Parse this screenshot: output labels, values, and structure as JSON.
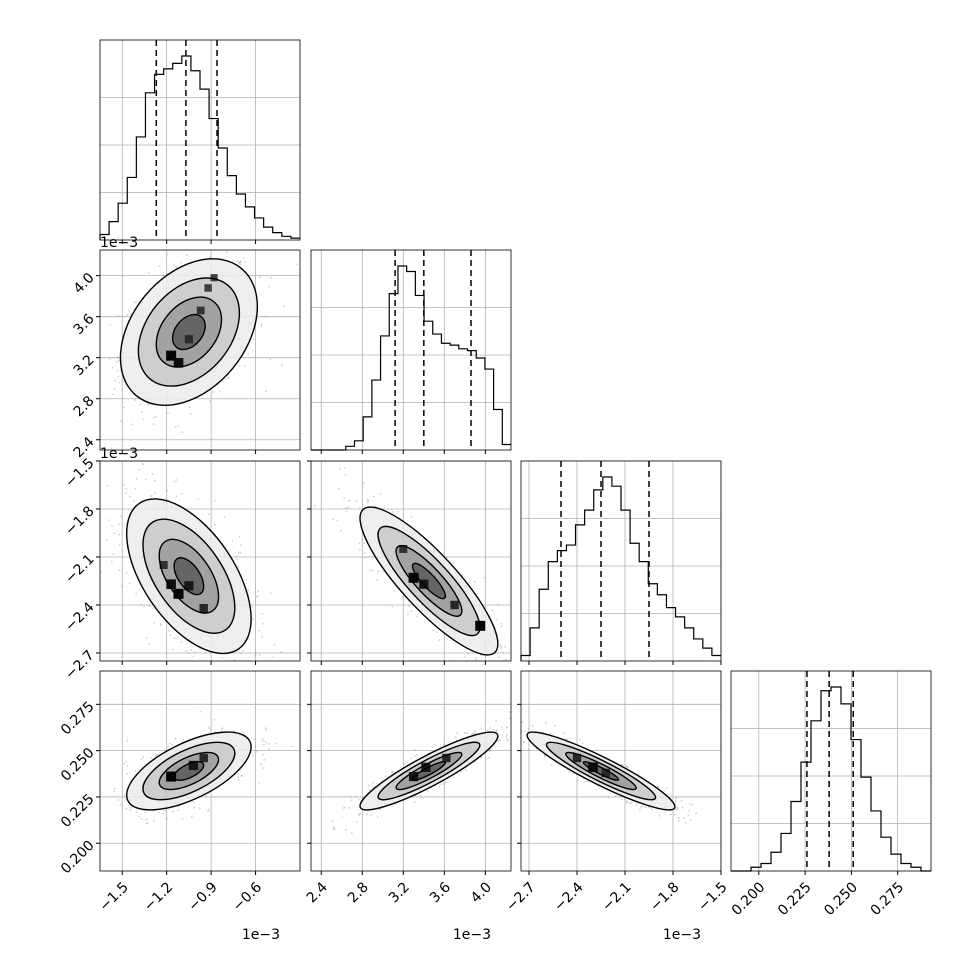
{
  "chart_data": {
    "type": "corner",
    "grid": true,
    "params": [
      {
        "range": [
          -1.65,
          -0.3
        ],
        "ticks": [
          -1.5,
          -1.2,
          -0.9,
          -0.6
        ],
        "tick_labels": [
          "−1.5",
          "−1.2",
          "−0.9",
          "−0.6"
        ],
        "offset_text": "1e−3",
        "quantiles": [
          -1.27,
          -1.07,
          -0.86
        ],
        "hist": [
          0.03,
          0.1,
          0.2,
          0.34,
          0.56,
          0.8,
          0.9,
          0.93,
          0.96,
          1.0,
          0.92,
          0.82,
          0.66,
          0.5,
          0.35,
          0.25,
          0.18,
          0.12,
          0.07,
          0.04,
          0.02,
          0.01
        ]
      },
      {
        "range": [
          2.3,
          4.25
        ],
        "ticks": [
          2.4,
          2.8,
          3.2,
          3.6,
          4.0
        ],
        "tick_labels": [
          "2.4",
          "2.8",
          "3.2",
          "3.6",
          "4.0"
        ],
        "offset_text": "1e−3",
        "quantiles": [
          3.12,
          3.4,
          3.86
        ],
        "hist": [
          0.0,
          0.0,
          0.0,
          0.0,
          0.02,
          0.05,
          0.18,
          0.38,
          0.62,
          0.85,
          1.0,
          0.97,
          0.84,
          0.7,
          0.63,
          0.58,
          0.57,
          0.55,
          0.54,
          0.5,
          0.44,
          0.22,
          0.03
        ]
      },
      {
        "range": [
          -2.75,
          -1.5
        ],
        "ticks": [
          -2.7,
          -2.4,
          -2.1,
          -1.8,
          -1.5
        ],
        "tick_labels": [
          "−2.7",
          "−2.4",
          "−2.1",
          "−1.8",
          "−1.5"
        ],
        "offset_text": "1e−3",
        "quantiles": [
          -2.5,
          -2.25,
          -1.95
        ],
        "hist": [
          0.03,
          0.18,
          0.39,
          0.54,
          0.6,
          0.63,
          0.74,
          0.82,
          0.93,
          1.0,
          0.95,
          0.82,
          0.64,
          0.54,
          0.42,
          0.36,
          0.29,
          0.24,
          0.18,
          0.12,
          0.07,
          0.03
        ]
      },
      {
        "range": [
          0.185,
          0.293
        ],
        "ticks": [
          0.2,
          0.225,
          0.25,
          0.275
        ],
        "tick_labels": [
          "0.200",
          "0.225",
          "0.250",
          "0.275"
        ],
        "offset_text": "",
        "quantiles": [
          0.226,
          0.238,
          0.251
        ],
        "hist": [
          0.0,
          0.0,
          0.02,
          0.04,
          0.1,
          0.2,
          0.37,
          0.58,
          0.8,
          0.96,
          0.98,
          0.89,
          0.7,
          0.5,
          0.32,
          0.18,
          0.09,
          0.04,
          0.02,
          0.0
        ]
      }
    ],
    "pairs": [
      {
        "x": 0,
        "y": 1,
        "mean": [
          -1.05,
          3.45
        ],
        "sd": [
          0.22,
          0.34
        ],
        "rho": 0.35,
        "blobs": [
          {
            "x": -1.17,
            "y": 3.22,
            "w": 1.0
          },
          {
            "x": -1.12,
            "y": 3.15,
            "w": 0.9
          },
          {
            "x": -1.05,
            "y": 3.38,
            "w": 0.55
          },
          {
            "x": -0.97,
            "y": 3.66,
            "w": 0.45
          },
          {
            "x": -0.92,
            "y": 3.88,
            "w": 0.35
          },
          {
            "x": -0.88,
            "y": 3.98,
            "w": 0.3
          }
        ]
      },
      {
        "x": 0,
        "y": 2,
        "mean": [
          -1.05,
          -2.22
        ],
        "sd": [
          0.2,
          0.23
        ],
        "rho": -0.55,
        "blobs": [
          {
            "x": -1.17,
            "y": -2.27,
            "w": 0.9
          },
          {
            "x": -1.12,
            "y": -2.33,
            "w": 1.0
          },
          {
            "x": -1.05,
            "y": -2.28,
            "w": 0.8
          },
          {
            "x": -0.95,
            "y": -2.42,
            "w": 0.6
          },
          {
            "x": -1.22,
            "y": -2.15,
            "w": 0.5
          }
        ]
      },
      {
        "x": 1,
        "y": 2,
        "mean": [
          3.45,
          -2.25
        ],
        "sd": [
          0.32,
          0.22
        ],
        "rho": -0.85,
        "blobs": [
          {
            "x": 3.3,
            "y": -2.23,
            "w": 1.0
          },
          {
            "x": 3.4,
            "y": -2.27,
            "w": 0.8
          },
          {
            "x": 3.7,
            "y": -2.4,
            "w": 0.6
          },
          {
            "x": 3.95,
            "y": -2.53,
            "w": 1.0
          },
          {
            "x": 3.2,
            "y": -2.05,
            "w": 0.5
          }
        ]
      },
      {
        "x": 0,
        "y": 3,
        "mean": [
          -1.05,
          0.239
        ],
        "sd": [
          0.2,
          0.01
        ],
        "rho": 0.62,
        "blobs": [
          {
            "x": -1.17,
            "y": 0.236,
            "w": 1.0
          },
          {
            "x": -1.02,
            "y": 0.242,
            "w": 0.8
          },
          {
            "x": -0.95,
            "y": 0.246,
            "w": 0.6
          }
        ]
      },
      {
        "x": 1,
        "y": 3,
        "mean": [
          3.45,
          0.239
        ],
        "sd": [
          0.32,
          0.01
        ],
        "rho": 0.9,
        "blobs": [
          {
            "x": 3.3,
            "y": 0.236,
            "w": 0.8
          },
          {
            "x": 3.42,
            "y": 0.241,
            "w": 0.8
          },
          {
            "x": 3.62,
            "y": 0.246,
            "w": 0.6
          }
        ]
      },
      {
        "x": 2,
        "y": 3,
        "mean": [
          -2.25,
          0.239
        ],
        "sd": [
          0.22,
          0.01
        ],
        "rho": -0.92,
        "blobs": [
          {
            "x": -2.4,
            "y": 0.246,
            "w": 0.6
          },
          {
            "x": -2.3,
            "y": 0.241,
            "w": 0.9
          },
          {
            "x": -2.22,
            "y": 0.238,
            "w": 0.6
          }
        ]
      }
    ]
  }
}
